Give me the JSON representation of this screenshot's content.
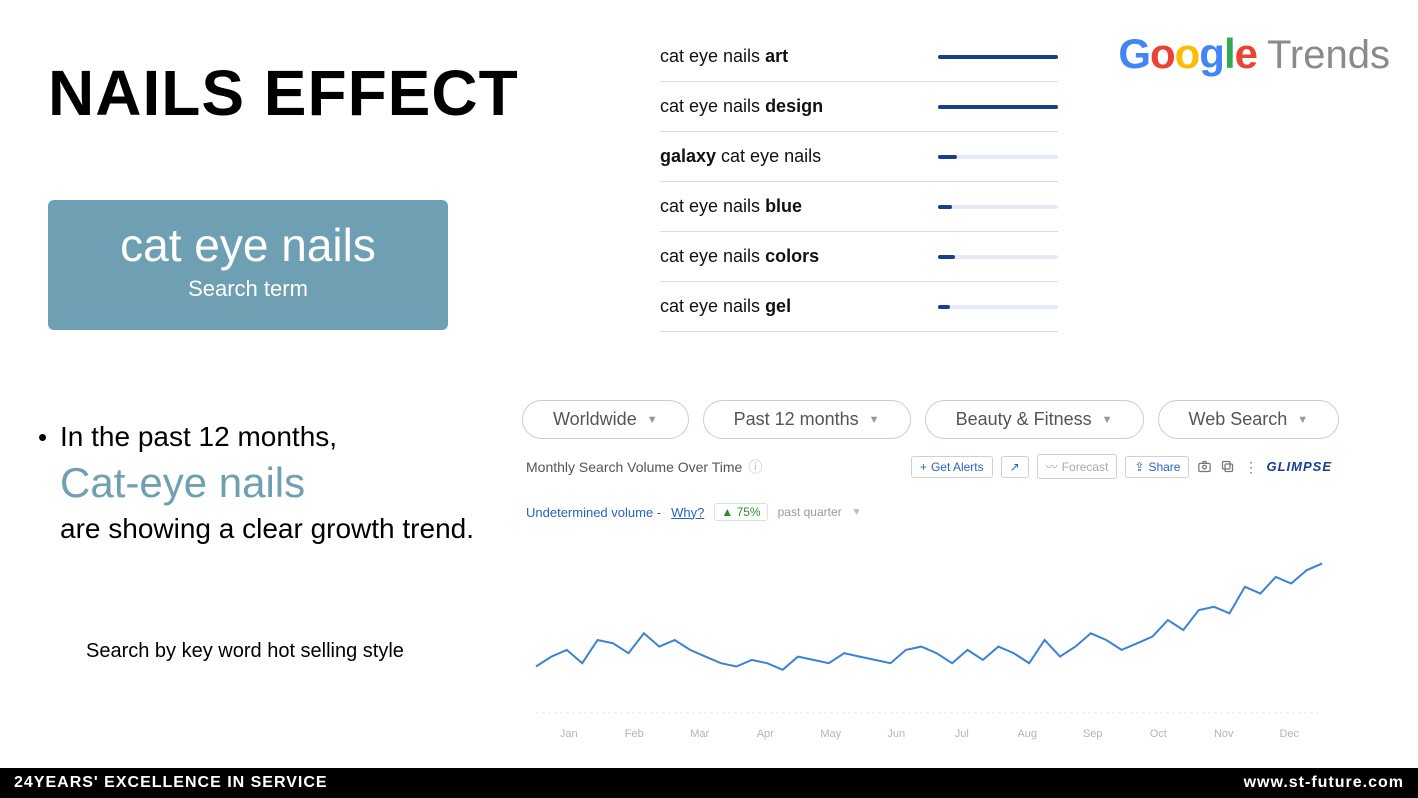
{
  "title": "NAILS EFFECT",
  "badge": {
    "term": "cat eye nails",
    "sub": "Search term",
    "bg_color": "#6f9fb3"
  },
  "bullet": {
    "lead": "In the past 12 months,",
    "highlight": "Cat-eye nails",
    "tail": "are showing a clear growth trend."
  },
  "caption": "Search by key word hot selling style",
  "logo": {
    "google_letters": [
      {
        "t": "G",
        "c": "#4285F4"
      },
      {
        "t": "o",
        "c": "#EA4335"
      },
      {
        "t": "o",
        "c": "#FBBC05"
      },
      {
        "t": "g",
        "c": "#4285F4"
      },
      {
        "t": "l",
        "c": "#34A853"
      },
      {
        "t": "e",
        "c": "#EA4335"
      }
    ],
    "trends": "Trends"
  },
  "related_queries": {
    "bar_fill_color": "#1a3d8f",
    "bar_bg_color": "#e6ecf6",
    "items": [
      {
        "prefix": "cat eye nails ",
        "bold": "art",
        "suffix": "",
        "value": 100
      },
      {
        "prefix": "cat eye nails ",
        "bold": "design",
        "suffix": "",
        "value": 100
      },
      {
        "prefix": "",
        "bold": "galaxy",
        "suffix": " cat eye nails",
        "value": 16
      },
      {
        "prefix": "cat eye nails ",
        "bold": "blue",
        "suffix": "",
        "value": 12
      },
      {
        "prefix": "cat eye nails ",
        "bold": "colors",
        "suffix": "",
        "value": 14
      },
      {
        "prefix": "cat eye nails ",
        "bold": "gel",
        "suffix": "",
        "value": 10
      }
    ]
  },
  "filters": [
    {
      "label": "Worldwide"
    },
    {
      "label": "Past 12 months"
    },
    {
      "label": "Beauty & Fitness"
    },
    {
      "label": "Web Search"
    }
  ],
  "panel": {
    "title": "Monthly Search Volume Over Time",
    "get_alerts": "Get Alerts",
    "forecast": "Forecast",
    "share": "Share",
    "glimpse": "GLIMPSE",
    "undetermined": "Undetermined volume - ",
    "why": "Why?",
    "pct": "▲ 75%",
    "past_quarter": "past quarter"
  },
  "chart": {
    "type": "line",
    "line_color": "#3b82d6",
    "grid_color": "#f3f3f3",
    "axis_label_color": "#b5b5b5",
    "axis_fontsize": 11,
    "ylim": [
      0,
      100
    ],
    "x_month_labels": [
      "Jan",
      "Feb",
      "Mar",
      "Apr",
      "May",
      "Jun",
      "Jul",
      "Aug",
      "Sep",
      "Oct",
      "Nov",
      "Dec"
    ],
    "values": [
      28,
      34,
      38,
      30,
      44,
      42,
      36,
      48,
      40,
      44,
      38,
      34,
      30,
      28,
      32,
      30,
      26,
      34,
      32,
      30,
      36,
      34,
      32,
      30,
      38,
      40,
      36,
      30,
      38,
      32,
      40,
      36,
      30,
      44,
      34,
      40,
      48,
      44,
      38,
      42,
      46,
      56,
      50,
      62,
      64,
      60,
      76,
      72,
      82,
      78,
      86,
      90
    ]
  },
  "footer": {
    "left": "24YEARS' EXCELLENCE IN SERVICE",
    "right": "www.st-future.com"
  }
}
